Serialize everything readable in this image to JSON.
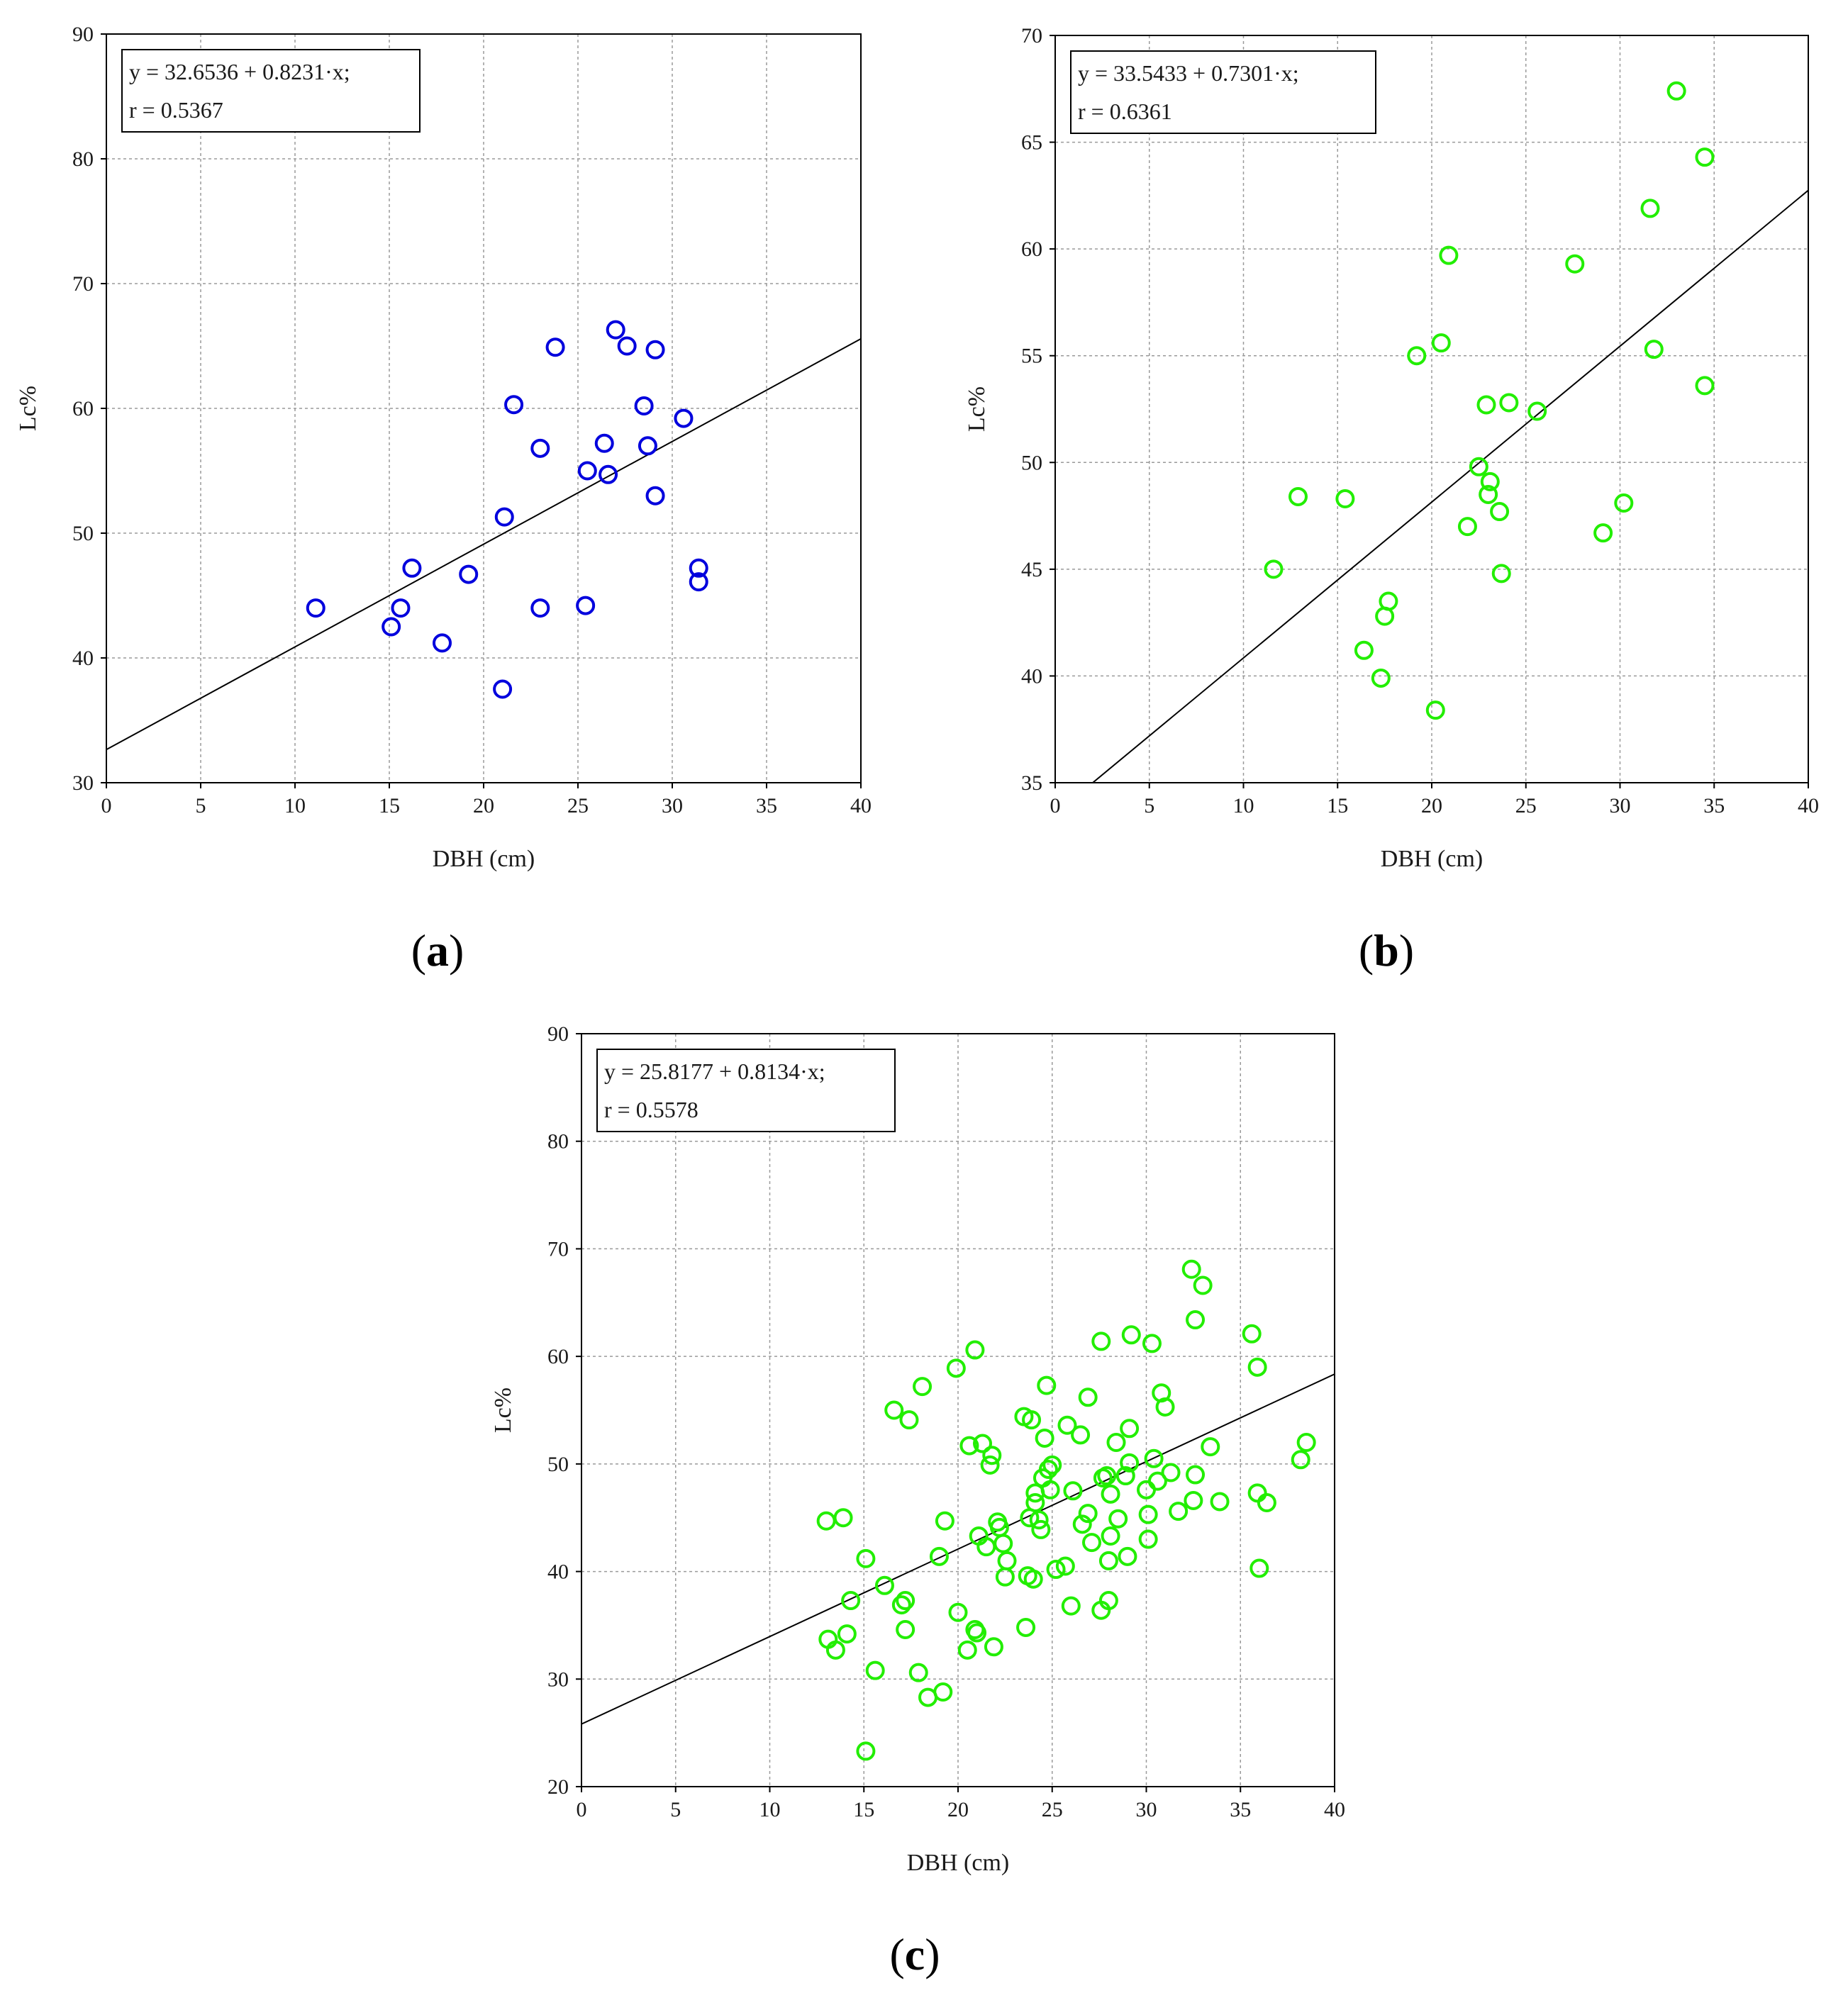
{
  "chart_data": [
    {
      "id": "a",
      "type": "scatter",
      "panel_label_open": "(",
      "panel_label_letter": "a",
      "panel_label_close": ")",
      "xlabel": "DBH (cm)",
      "ylabel": "Lc%",
      "xlim": [
        0,
        40
      ],
      "ylim": [
        30,
        90
      ],
      "xticks": [
        "0",
        "5",
        "10",
        "15",
        "20",
        "25",
        "30",
        "35",
        "40"
      ],
      "yticks": [
        "30",
        "40",
        "50",
        "60",
        "70",
        "80",
        "90"
      ],
      "grid": true,
      "marker_color": "#0000dd",
      "regression": {
        "intercept": 32.6536,
        "slope": 0.8231
      },
      "equation_text": "y = 32.6536 + 0.8231·x;",
      "r_text": "r = 0.5367",
      "points": [
        [
          11.1,
          44.0
        ],
        [
          15.1,
          42.5
        ],
        [
          15.6,
          44.0
        ],
        [
          16.2,
          47.2
        ],
        [
          17.8,
          41.2
        ],
        [
          19.2,
          46.7
        ],
        [
          21.0,
          37.5
        ],
        [
          21.1,
          51.3
        ],
        [
          21.6,
          60.3
        ],
        [
          23.0,
          56.8
        ],
        [
          23.0,
          44.0
        ],
        [
          23.8,
          64.9
        ],
        [
          25.4,
          44.2
        ],
        [
          25.5,
          55.0
        ],
        [
          26.4,
          57.2
        ],
        [
          26.6,
          54.7
        ],
        [
          27.0,
          66.3
        ],
        [
          27.6,
          65.0
        ],
        [
          28.5,
          60.2
        ],
        [
          28.7,
          57.0
        ],
        [
          29.1,
          53.0
        ],
        [
          29.1,
          64.7
        ],
        [
          30.6,
          59.2
        ],
        [
          31.4,
          46.1
        ],
        [
          31.4,
          47.2
        ]
      ]
    },
    {
      "id": "b",
      "type": "scatter",
      "panel_label_open": "(",
      "panel_label_letter": "b",
      "panel_label_close": ")",
      "xlabel": "DBH (cm)",
      "ylabel": "Lc%",
      "xlim": [
        0,
        40
      ],
      "ylim": [
        35,
        70
      ],
      "xticks": [
        "0",
        "5",
        "10",
        "15",
        "20",
        "25",
        "30",
        "35",
        "40"
      ],
      "yticks": [
        "35",
        "40",
        "45",
        "50",
        "55",
        "60",
        "65",
        "70"
      ],
      "grid": true,
      "marker_color": "#22ee00",
      "regression": {
        "intercept": 33.5433,
        "slope": 0.7301
      },
      "equation_text": "y = 33.5433 + 0.7301·x;",
      "r_text": "r = 0.6361",
      "points": [
        [
          11.6,
          45.0
        ],
        [
          12.9,
          48.4
        ],
        [
          15.4,
          48.3
        ],
        [
          16.4,
          41.2
        ],
        [
          17.3,
          39.9
        ],
        [
          17.5,
          42.8
        ],
        [
          17.7,
          43.5
        ],
        [
          19.2,
          55.0
        ],
        [
          20.2,
          38.4
        ],
        [
          20.5,
          55.6
        ],
        [
          20.9,
          59.7
        ],
        [
          21.9,
          47.0
        ],
        [
          22.5,
          49.8
        ],
        [
          22.9,
          52.7
        ],
        [
          23.0,
          48.5
        ],
        [
          23.1,
          49.1
        ],
        [
          23.6,
          47.7
        ],
        [
          23.7,
          44.8
        ],
        [
          24.1,
          52.8
        ],
        [
          25.6,
          52.4
        ],
        [
          27.6,
          59.3
        ],
        [
          29.1,
          46.7
        ],
        [
          30.2,
          48.1
        ],
        [
          31.6,
          61.9
        ],
        [
          31.8,
          55.3
        ],
        [
          33.0,
          67.4
        ],
        [
          34.5,
          64.3
        ],
        [
          34.5,
          53.6
        ]
      ]
    },
    {
      "id": "c",
      "type": "scatter",
      "panel_label_open": "(",
      "panel_label_letter": "c",
      "panel_label_close": ")",
      "xlabel": "DBH (cm)",
      "ylabel": "Lc%",
      "xlim": [
        0,
        40
      ],
      "ylim": [
        20,
        90
      ],
      "xticks": [
        "0",
        "5",
        "10",
        "15",
        "20",
        "25",
        "30",
        "35",
        "40"
      ],
      "yticks": [
        "20",
        "30",
        "40",
        "50",
        "60",
        "70",
        "80",
        "90"
      ],
      "grid": true,
      "marker_color": "#22ee00",
      "regression": {
        "intercept": 25.8177,
        "slope": 0.8134
      },
      "equation_text": "y = 25.8177 + 0.8134·x;",
      "r_text": "r = 0.5578",
      "points": [
        [
          13.0,
          44.7
        ],
        [
          13.1,
          33.7
        ],
        [
          13.5,
          32.7
        ],
        [
          13.9,
          45.0
        ],
        [
          14.1,
          34.2
        ],
        [
          14.3,
          37.3
        ],
        [
          15.1,
          41.2
        ],
        [
          15.1,
          23.3
        ],
        [
          15.6,
          30.8
        ],
        [
          16.1,
          38.7
        ],
        [
          16.6,
          55.0
        ],
        [
          17.0,
          36.9
        ],
        [
          17.2,
          37.3
        ],
        [
          17.2,
          34.6
        ],
        [
          17.4,
          54.1
        ],
        [
          17.9,
          30.6
        ],
        [
          18.1,
          57.2
        ],
        [
          18.4,
          28.3
        ],
        [
          19.0,
          41.4
        ],
        [
          19.2,
          28.8
        ],
        [
          19.3,
          44.7
        ],
        [
          19.9,
          58.9
        ],
        [
          20.0,
          36.2
        ],
        [
          20.5,
          32.7
        ],
        [
          20.6,
          51.7
        ],
        [
          20.9,
          34.6
        ],
        [
          20.9,
          60.6
        ],
        [
          21.0,
          34.3
        ],
        [
          21.1,
          43.3
        ],
        [
          21.3,
          51.9
        ],
        [
          21.5,
          42.3
        ],
        [
          21.7,
          49.9
        ],
        [
          21.8,
          50.8
        ],
        [
          21.9,
          33.0
        ],
        [
          22.1,
          44.6
        ],
        [
          22.2,
          44.1
        ],
        [
          22.4,
          42.6
        ],
        [
          22.5,
          39.5
        ],
        [
          22.6,
          41.0
        ],
        [
          23.5,
          54.4
        ],
        [
          23.6,
          34.8
        ],
        [
          23.7,
          39.6
        ],
        [
          23.8,
          45.0
        ],
        [
          23.9,
          54.1
        ],
        [
          24.0,
          39.3
        ],
        [
          24.1,
          46.4
        ],
        [
          24.1,
          47.3
        ],
        [
          24.3,
          44.8
        ],
        [
          24.4,
          43.9
        ],
        [
          24.5,
          48.7
        ],
        [
          24.6,
          52.4
        ],
        [
          24.7,
          57.3
        ],
        [
          24.8,
          49.5
        ],
        [
          24.9,
          47.6
        ],
        [
          25.0,
          49.9
        ],
        [
          25.2,
          40.2
        ],
        [
          25.7,
          40.5
        ],
        [
          25.8,
          53.6
        ],
        [
          26.0,
          36.8
        ],
        [
          26.1,
          47.5
        ],
        [
          26.5,
          52.7
        ],
        [
          26.6,
          44.4
        ],
        [
          26.9,
          56.2
        ],
        [
          26.9,
          45.4
        ],
        [
          27.1,
          42.7
        ],
        [
          27.6,
          61.4
        ],
        [
          27.6,
          36.4
        ],
        [
          27.7,
          48.7
        ],
        [
          27.9,
          48.9
        ],
        [
          28.0,
          41.0
        ],
        [
          28.0,
          37.3
        ],
        [
          28.1,
          47.2
        ],
        [
          28.1,
          43.3
        ],
        [
          28.4,
          52.0
        ],
        [
          28.5,
          44.9
        ],
        [
          28.9,
          48.9
        ],
        [
          29.0,
          41.4
        ],
        [
          29.1,
          53.3
        ],
        [
          29.1,
          50.1
        ],
        [
          29.2,
          62.0
        ],
        [
          30.0,
          47.6
        ],
        [
          30.1,
          45.3
        ],
        [
          30.1,
          43.0
        ],
        [
          30.3,
          61.2
        ],
        [
          30.4,
          50.5
        ],
        [
          30.6,
          48.4
        ],
        [
          30.8,
          56.6
        ],
        [
          31.0,
          55.3
        ],
        [
          31.3,
          49.2
        ],
        [
          31.7,
          45.6
        ],
        [
          32.4,
          68.1
        ],
        [
          32.5,
          46.6
        ],
        [
          32.6,
          63.4
        ],
        [
          32.6,
          49.0
        ],
        [
          33.0,
          66.6
        ],
        [
          33.4,
          51.6
        ],
        [
          33.9,
          46.5
        ],
        [
          35.6,
          62.1
        ],
        [
          35.9,
          47.3
        ],
        [
          35.9,
          59.0
        ],
        [
          36.0,
          40.3
        ],
        [
          36.4,
          46.4
        ],
        [
          38.2,
          50.4
        ],
        [
          38.5,
          52.0
        ]
      ]
    }
  ]
}
